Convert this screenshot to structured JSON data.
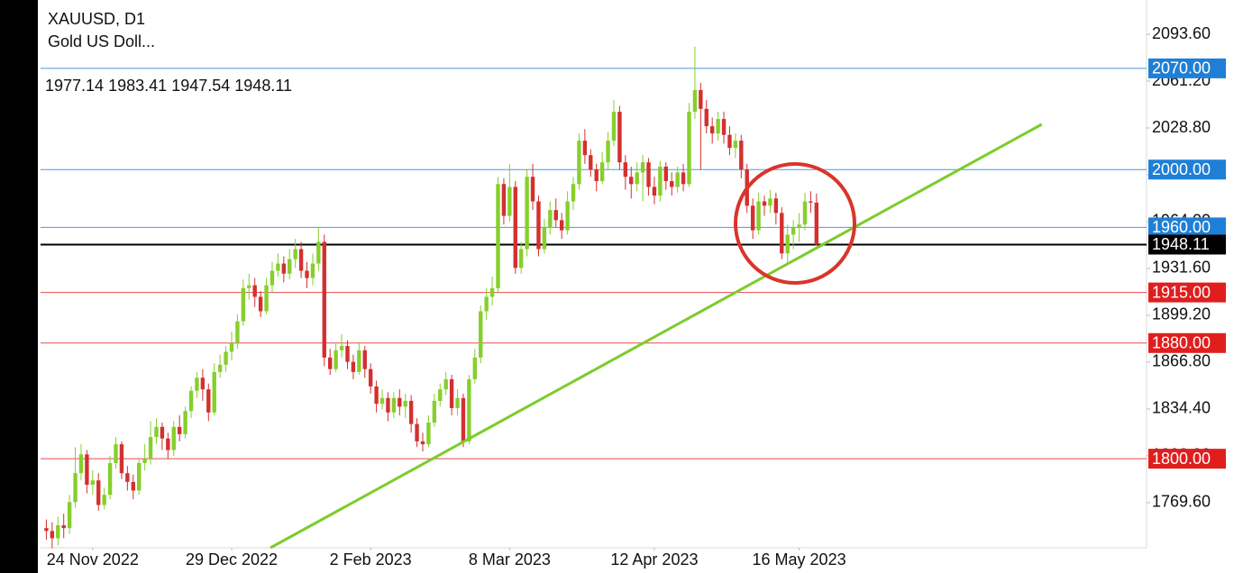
{
  "chart_data": {
    "type": "candlestick",
    "symbol": "XAUUSD, D1",
    "name": "Gold US Doll...",
    "up_color": "#86cf2c",
    "down_color": "#d3302f",
    "xlim": [
      -1,
      190
    ],
    "ylim": [
      1738.4,
      2117.3
    ],
    "xticks": [
      {
        "value": 8,
        "label": "24 Nov 2022"
      },
      {
        "value": 32,
        "label": "29 Dec 2022"
      },
      {
        "value": 56,
        "label": "2 Feb 2023"
      },
      {
        "value": 80,
        "label": "8 Mar 2023"
      },
      {
        "value": 105,
        "label": "12 Apr 2023"
      },
      {
        "value": 130,
        "label": "16 May 2023"
      }
    ],
    "yticks": [
      {
        "value": 2093.6,
        "label": "2093.60"
      },
      {
        "value": 2061.2,
        "label": "2061.20"
      },
      {
        "value": 2028.8,
        "label": "2028.80"
      },
      {
        "value": 1996.4,
        "label": "1996.40"
      },
      {
        "value": 1964,
        "label": "1964.00"
      },
      {
        "value": 1931.6,
        "label": "1931.60"
      },
      {
        "value": 1899.2,
        "label": "1899.20"
      },
      {
        "value": 1866.8,
        "label": "1866.80"
      },
      {
        "value": 1834.4,
        "label": "1834.40"
      },
      {
        "value": 1802,
        "label": "1802.00"
      },
      {
        "value": 1769.6,
        "label": "1769.60"
      }
    ],
    "levels": [
      {
        "value": 2070,
        "label": "2070.00",
        "color": "#1f7fd6"
      },
      {
        "value": 2000,
        "label": "2000.00",
        "color": "#1f7fd6"
      },
      {
        "value": 1960,
        "label": "1960.00",
        "color": "#1f7fd6"
      },
      {
        "value": 1948.11,
        "label": "1948.11",
        "color": "#000000"
      },
      {
        "value": 1915,
        "label": "1915.00",
        "color": "#e01e1e"
      },
      {
        "value": 1880,
        "label": "1880.00",
        "color": "#e01e1e"
      },
      {
        "value": 1800,
        "label": "1800.00",
        "color": "#e01e1e"
      }
    ],
    "trendline": {
      "x": [
        38.7,
        171.9
      ],
      "y": [
        1738.4,
        2031.3
      ],
      "color": "#7ccc2a"
    },
    "open": [
      1752,
      1750,
      1745,
      1754,
      1752,
      1770,
      1790,
      1803,
      1782,
      1785,
      1768,
      1775,
      1797,
      1810,
      1790,
      1784,
      1778,
      1797,
      1800,
      1815,
      1822,
      1814,
      1806,
      1822,
      1817,
      1833,
      1847,
      1856,
      1848,
      1832,
      1860,
      1865,
      1874,
      1880,
      1895,
      1918,
      1920,
      1912,
      1902,
      1920,
      1930,
      1935,
      1928,
      1938,
      1945,
      1930,
      1925,
      1935,
      1950,
      1870,
      1862,
      1875,
      1878,
      1867,
      1860,
      1875,
      1862,
      1850,
      1838,
      1842,
      1832,
      1842,
      1836,
      1840,
      1824,
      1812,
      1810,
      1825,
      1840,
      1848,
      1855,
      1835,
      1842,
      1812,
      1855,
      1870,
      1902,
      1912,
      1918,
      1990,
      1968,
      1988,
      1932,
      1945,
      1995,
      1978,
      1945,
      1960,
      1972,
      1965,
      1958,
      1978,
      1990,
      2020,
      2010,
      2000,
      1992,
      2005,
      2020,
      2040,
      2005,
      1995,
      1990,
      1998,
      2005,
      1988,
      1982,
      2002,
      1992,
      1988,
      1998,
      1990,
      2040,
      2055,
      2042,
      2030,
      2025,
      2035,
      2024,
      2015,
      2020,
      2000,
      1975,
      1958,
      1978,
      1975,
      1980,
      1970,
      1942,
      1955,
      1960,
      1962,
      1978,
      1977.14
    ],
    "high": [
      1758,
      1756,
      1760,
      1762,
      1775,
      1808,
      1810,
      1806,
      1792,
      1790,
      1780,
      1802,
      1815,
      1812,
      1795,
      1789,
      1800,
      1810,
      1826,
      1828,
      1825,
      1818,
      1826,
      1830,
      1836,
      1850,
      1860,
      1862,
      1852,
      1866,
      1872,
      1878,
      1888,
      1900,
      1924,
      1928,
      1925,
      1916,
      1925,
      1936,
      1942,
      1940,
      1945,
      1952,
      1950,
      1936,
      1942,
      1960,
      1955,
      1876,
      1880,
      1886,
      1882,
      1872,
      1880,
      1878,
      1866,
      1854,
      1848,
      1846,
      1846,
      1848,
      1845,
      1844,
      1828,
      1818,
      1830,
      1845,
      1852,
      1860,
      1858,
      1848,
      1845,
      1858,
      1876,
      1906,
      1918,
      1926,
      1995,
      1994,
      2004,
      1992,
      1950,
      2000,
      2004,
      1982,
      1966,
      1978,
      1980,
      1970,
      1985,
      1995,
      2025,
      2028,
      2014,
      2004,
      2012,
      2026,
      2048,
      2044,
      2010,
      2002,
      2005,
      2010,
      2008,
      1995,
      2006,
      2005,
      1998,
      2002,
      2004,
      2046,
      2085,
      2060,
      2048,
      2036,
      2040,
      2040,
      2030,
      2025,
      2024,
      2004,
      1980,
      1984,
      1982,
      1986,
      1984,
      1974,
      1962,
      1965,
      1970,
      1984,
      1985,
      1983.41
    ],
    "low": [
      1744,
      1738,
      1740,
      1745,
      1748,
      1766,
      1785,
      1776,
      1775,
      1764,
      1765,
      1772,
      1793,
      1786,
      1778,
      1772,
      1775,
      1792,
      1796,
      1810,
      1806,
      1800,
      1802,
      1812,
      1814,
      1828,
      1842,
      1840,
      1826,
      1830,
      1856,
      1860,
      1868,
      1876,
      1892,
      1910,
      1905,
      1898,
      1900,
      1915,
      1926,
      1922,
      1924,
      1932,
      1925,
      1918,
      1920,
      1930,
      1864,
      1858,
      1860,
      1870,
      1862,
      1855,
      1858,
      1856,
      1845,
      1832,
      1834,
      1826,
      1828,
      1830,
      1828,
      1818,
      1808,
      1805,
      1808,
      1822,
      1836,
      1844,
      1830,
      1830,
      1808,
      1810,
      1852,
      1866,
      1896,
      1906,
      1915,
      1962,
      1964,
      1928,
      1928,
      1940,
      1972,
      1940,
      1942,
      1955,
      1960,
      1952,
      1955,
      1972,
      1986,
      2004,
      1995,
      1985,
      1990,
      2000,
      2016,
      2000,
      1986,
      1980,
      1985,
      1978,
      1982,
      1976,
      1978,
      1986,
      1982,
      1984,
      1985,
      1988,
      2035,
      2000,
      2025,
      2018,
      2020,
      2018,
      2010,
      2008,
      1994,
      1970,
      1952,
      1955,
      1968,
      1970,
      1962,
      1938,
      1935,
      1945,
      1950,
      1958,
      1970,
      1947.54
    ],
    "close": [
      1750,
      1745,
      1754,
      1752,
      1770,
      1790,
      1803,
      1782,
      1785,
      1768,
      1775,
      1797,
      1810,
      1790,
      1784,
      1778,
      1797,
      1800,
      1815,
      1822,
      1814,
      1806,
      1822,
      1817,
      1833,
      1847,
      1856,
      1848,
      1832,
      1860,
      1865,
      1874,
      1880,
      1895,
      1918,
      1920,
      1912,
      1902,
      1920,
      1930,
      1935,
      1928,
      1938,
      1945,
      1930,
      1925,
      1935,
      1950,
      1870,
      1862,
      1875,
      1878,
      1867,
      1860,
      1875,
      1862,
      1850,
      1838,
      1842,
      1832,
      1842,
      1836,
      1840,
      1824,
      1812,
      1810,
      1825,
      1840,
      1848,
      1855,
      1835,
      1842,
      1812,
      1855,
      1870,
      1902,
      1912,
      1918,
      1990,
      1968,
      1988,
      1932,
      1945,
      1995,
      1978,
      1945,
      1960,
      1972,
      1965,
      1958,
      1978,
      1990,
      2020,
      2010,
      2000,
      1992,
      2005,
      2020,
      2040,
      2005,
      1995,
      1990,
      1998,
      2005,
      1988,
      1982,
      2002,
      1992,
      1988,
      1998,
      1990,
      2040,
      2055,
      2042,
      2030,
      2025,
      2035,
      2024,
      2015,
      2020,
      2000,
      1975,
      1958,
      1978,
      1975,
      1980,
      1970,
      1942,
      1955,
      1960,
      1962,
      1978,
      1977.14,
      1948.11
    ]
  }
}
